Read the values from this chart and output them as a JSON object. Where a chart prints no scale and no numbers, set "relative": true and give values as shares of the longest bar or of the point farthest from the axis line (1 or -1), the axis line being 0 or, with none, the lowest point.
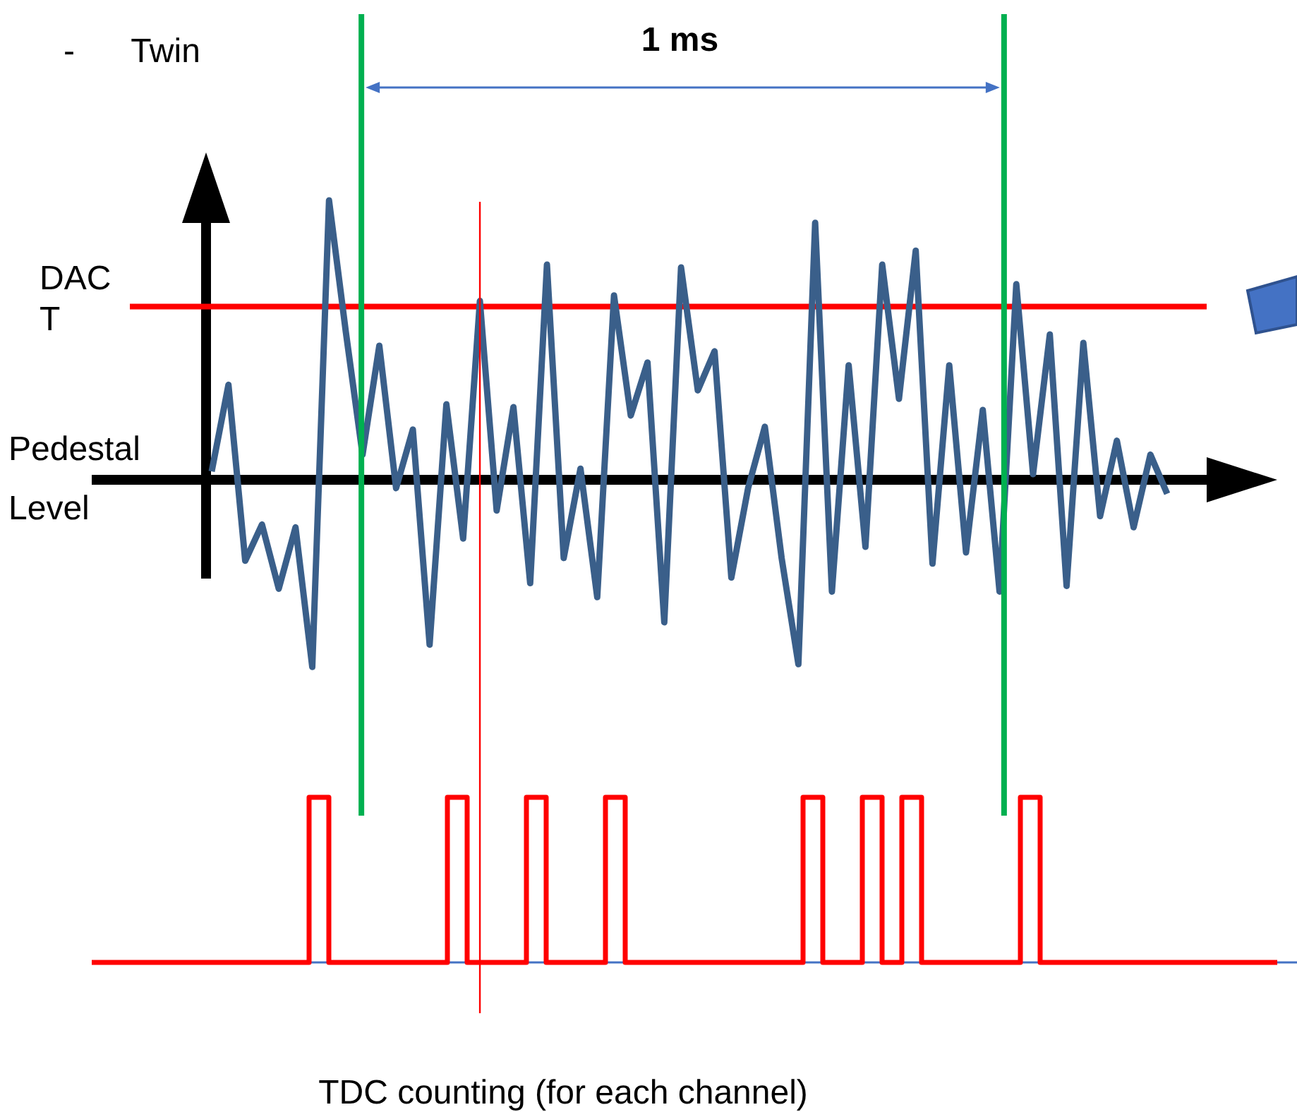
{
  "chart_data": [
    {
      "type": "line",
      "relative": true,
      "annotations": [
        "- Twin",
        "1 ms",
        "Pedestal Level"
      ],
      "marker": "none",
      "line_style": "solid",
      "categories": [
        null,
        null,
        null,
        null,
        null,
        null,
        null,
        null,
        null,
        null,
        null,
        null,
        null,
        null,
        null,
        null,
        null,
        null,
        null,
        null,
        null,
        null,
        null,
        null,
        null,
        null,
        null,
        null,
        null,
        null,
        null,
        null,
        null,
        null,
        null,
        null,
        null,
        null,
        null,
        null,
        null,
        null,
        null,
        null,
        null,
        null,
        null,
        null,
        null,
        null,
        null,
        null,
        null,
        null,
        null,
        null,
        null,
        null
      ],
      "series": [
        {
          "color": "#3a5f8a",
          "values": [
            0.03,
            0.34,
            -0.29,
            -0.16,
            -0.39,
            -0.17,
            -0.67,
            1.0,
            0.53,
            0.09,
            0.48,
            -0.03,
            0.18,
            -0.59,
            0.27,
            -0.21,
            0.64,
            -0.11,
            0.26,
            -0.37,
            0.77,
            -0.28,
            0.04,
            -0.42,
            0.66,
            0.23,
            0.42,
            -0.51,
            0.76,
            0.32,
            0.46,
            -0.35,
            -0.03,
            0.19,
            -0.28,
            -0.66,
            0.92,
            -0.4,
            0.41,
            -0.24,
            0.77,
            0.29,
            0.82,
            -0.3,
            0.41,
            -0.26,
            0.25,
            -0.4,
            0.7,
            0.02,
            0.52,
            -0.38,
            0.49,
            -0.13,
            0.14,
            -0.17,
            0.09,
            -0.05
          ]
        }
      ],
      "ref_lines": [
        {
          "axis": "y",
          "value": 0.62,
          "label": "DAC T",
          "color": "#ff0000"
        }
      ]
    },
    {
      "type": "step",
      "relative": true,
      "xlabel": "TDC counting (for each channel)",
      "categories": [
        null,
        null,
        null,
        null,
        null,
        null,
        null,
        null,
        null,
        null,
        null,
        null,
        null,
        null,
        null,
        null,
        null,
        null,
        null,
        null,
        null,
        null,
        null,
        null,
        null,
        null,
        null,
        null,
        null,
        null,
        null,
        null,
        null,
        null,
        null,
        null,
        null,
        null,
        null,
        null,
        null,
        null,
        null,
        null,
        null,
        null,
        null,
        null,
        null,
        null,
        null,
        null,
        null,
        null,
        null,
        null,
        null,
        null,
        null,
        null,
        null
      ],
      "series": [
        {
          "color": "#ff0000",
          "values": [
            0,
            0,
            0,
            0,
            0,
            0,
            0,
            0,
            0,
            0,
            0,
            1,
            0,
            0,
            0,
            0,
            0,
            0,
            1,
            0,
            0,
            0,
            1,
            0,
            0,
            0,
            1,
            0,
            0,
            0,
            0,
            0,
            0,
            0,
            0,
            0,
            1,
            0,
            0,
            1,
            0,
            1,
            0,
            0,
            0,
            0,
            0,
            1,
            0,
            0,
            0,
            0,
            0,
            0,
            0,
            0,
            0,
            0,
            0,
            0,
            0
          ]
        }
      ]
    }
  ]
}
